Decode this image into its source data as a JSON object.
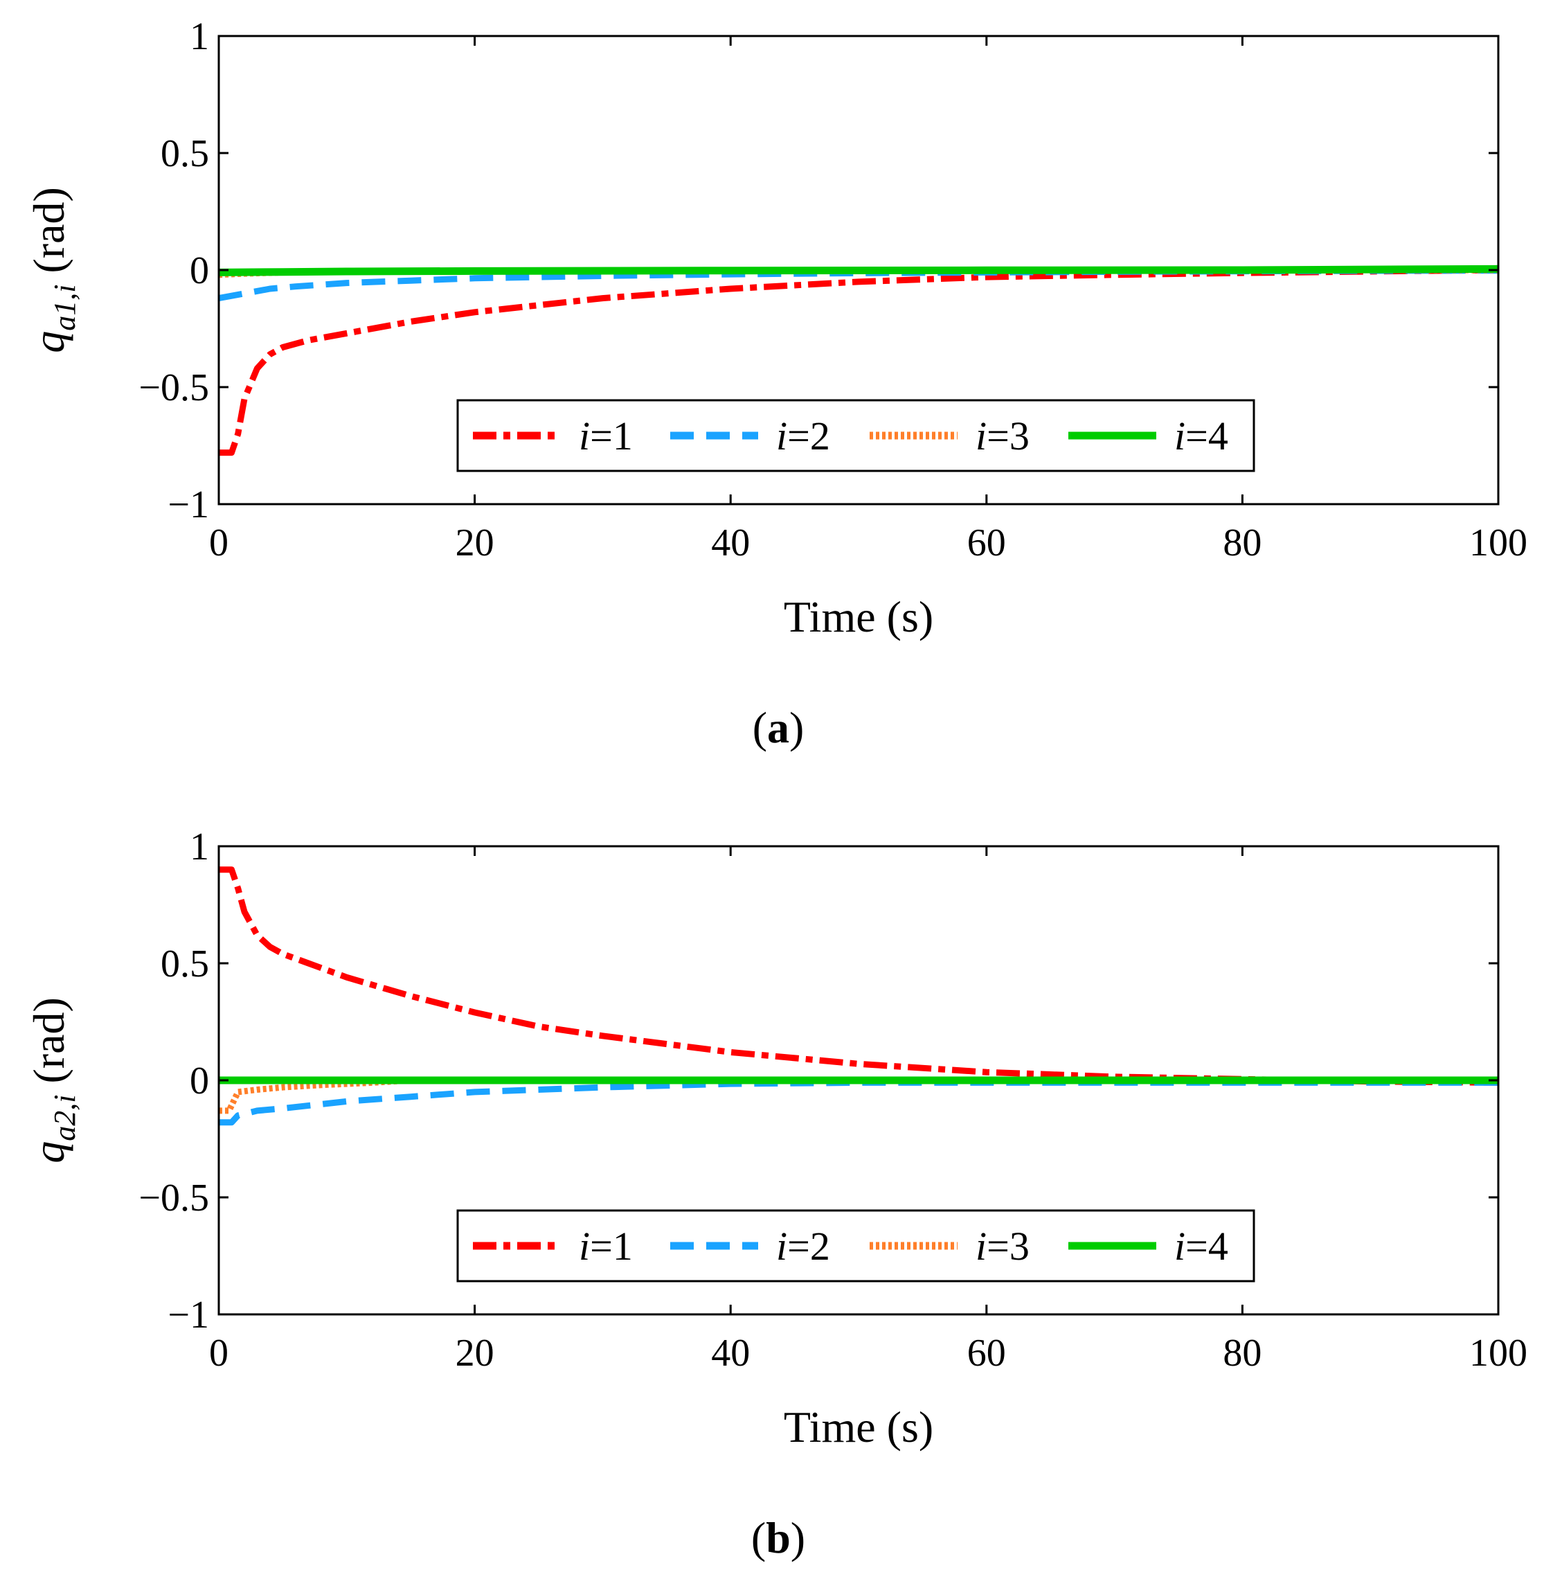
{
  "colors": {
    "i1": "#ff0000",
    "i2": "#1aa3ff",
    "i3": "#ff7f2a",
    "i4": "#00cc00",
    "axis": "#000000"
  },
  "chart_data": [
    {
      "type": "line",
      "panel_label": {
        "open": "(",
        "letter": "a",
        "close": ")"
      },
      "ylabel": {
        "base": "q",
        "sub": "a1,i",
        "unit": " (rad)"
      },
      "xlabel": "Time (s)",
      "xlim": [
        0,
        100
      ],
      "ylim": [
        -1,
        1
      ],
      "xticks": [
        0,
        20,
        40,
        60,
        80,
        100
      ],
      "xtick_labels": [
        "0",
        "20",
        "40",
        "60",
        "80",
        "100"
      ],
      "yticks": [
        -1,
        -0.5,
        0,
        0.5,
        1
      ],
      "ytick_labels": [
        "−1",
        "−0.5",
        "0",
        "0.5",
        "1"
      ],
      "legend_position": "bottom-center",
      "series": [
        {
          "name": "i=1",
          "var": "i",
          "eq": "=1",
          "style": "dashdot",
          "x": [
            0,
            1,
            1.5,
            2,
            3,
            4,
            5,
            7,
            10,
            15,
            20,
            25,
            30,
            40,
            50,
            60,
            70,
            80,
            90,
            100
          ],
          "y": [
            -0.78,
            -0.78,
            -0.7,
            -0.55,
            -0.42,
            -0.36,
            -0.33,
            -0.3,
            -0.27,
            -0.22,
            -0.18,
            -0.15,
            -0.12,
            -0.08,
            -0.05,
            -0.03,
            -0.02,
            -0.012,
            -0.006,
            0
          ]
        },
        {
          "name": "i=2",
          "var": "i",
          "eq": "=2",
          "style": "dashed",
          "x": [
            0,
            1,
            2,
            4,
            6,
            10,
            15,
            20,
            30,
            40,
            50,
            60,
            70,
            80,
            90,
            100
          ],
          "y": [
            -0.12,
            -0.11,
            -0.1,
            -0.08,
            -0.07,
            -0.055,
            -0.045,
            -0.035,
            -0.025,
            -0.018,
            -0.013,
            -0.01,
            -0.007,
            -0.005,
            -0.003,
            -0.002
          ]
        },
        {
          "name": "i=3",
          "var": "i",
          "eq": "=3",
          "style": "dotted",
          "x": [
            0,
            2,
            5,
            10,
            20,
            30,
            50,
            75,
            100
          ],
          "y": [
            -0.02,
            -0.015,
            -0.01,
            -0.006,
            -0.003,
            -0.002,
            -0.001,
            0,
            0
          ]
        },
        {
          "name": "i=4",
          "var": "i",
          "eq": "=4",
          "style": "solid",
          "x": [
            0,
            5,
            10,
            20,
            40,
            60,
            80,
            100
          ],
          "y": [
            -0.01,
            -0.008,
            -0.006,
            -0.004,
            -0.002,
            -0.001,
            0,
            0.005
          ]
        }
      ]
    },
    {
      "type": "line",
      "panel_label": {
        "open": "(",
        "letter": "b",
        "close": ")"
      },
      "ylabel": {
        "base": "q",
        "sub": "a2,i",
        "unit": " (rad)"
      },
      "xlabel": "Time (s)",
      "xlim": [
        0,
        100
      ],
      "ylim": [
        -1,
        1
      ],
      "xticks": [
        0,
        20,
        40,
        60,
        80,
        100
      ],
      "xtick_labels": [
        "0",
        "20",
        "40",
        "60",
        "80",
        "100"
      ],
      "yticks": [
        -1,
        -0.5,
        0,
        0.5,
        1
      ],
      "ytick_labels": [
        "−1",
        "−0.5",
        "0",
        "0.5",
        "1"
      ],
      "legend_position": "bottom-center",
      "series": [
        {
          "name": "i=1",
          "var": "i",
          "eq": "=1",
          "style": "dashdot",
          "x": [
            0,
            1,
            1.5,
            2,
            3,
            4,
            5,
            7,
            10,
            15,
            20,
            25,
            30,
            40,
            50,
            60,
            70,
            80,
            90,
            100
          ],
          "y": [
            0.9,
            0.9,
            0.82,
            0.72,
            0.62,
            0.57,
            0.54,
            0.5,
            0.44,
            0.36,
            0.29,
            0.23,
            0.19,
            0.12,
            0.07,
            0.035,
            0.015,
            0.005,
            -0.005,
            -0.01
          ]
        },
        {
          "name": "i=2",
          "var": "i",
          "eq": "=2",
          "style": "dashed",
          "x": [
            0,
            1,
            1.5,
            3,
            5,
            10,
            15,
            20,
            30,
            40,
            50,
            60,
            70,
            80,
            90,
            100
          ],
          "y": [
            -0.18,
            -0.18,
            -0.15,
            -0.13,
            -0.12,
            -0.09,
            -0.07,
            -0.05,
            -0.03,
            -0.015,
            -0.01,
            -0.01,
            -0.01,
            -0.01,
            -0.01,
            -0.01
          ]
        },
        {
          "name": "i=3",
          "var": "i",
          "eq": "=3",
          "style": "dotted",
          "x": [
            0,
            0.8,
            1.5,
            3,
            5,
            8,
            12,
            15,
            20,
            30,
            40,
            60,
            100
          ],
          "y": [
            -0.13,
            -0.13,
            -0.05,
            -0.04,
            -0.03,
            -0.02,
            -0.01,
            0,
            0,
            0,
            0,
            0,
            0
          ]
        },
        {
          "name": "i=4",
          "var": "i",
          "eq": "=4",
          "style": "solid",
          "x": [
            0,
            20,
            40,
            60,
            80,
            100
          ],
          "y": [
            0,
            0,
            0,
            0,
            0,
            0
          ]
        }
      ]
    }
  ]
}
